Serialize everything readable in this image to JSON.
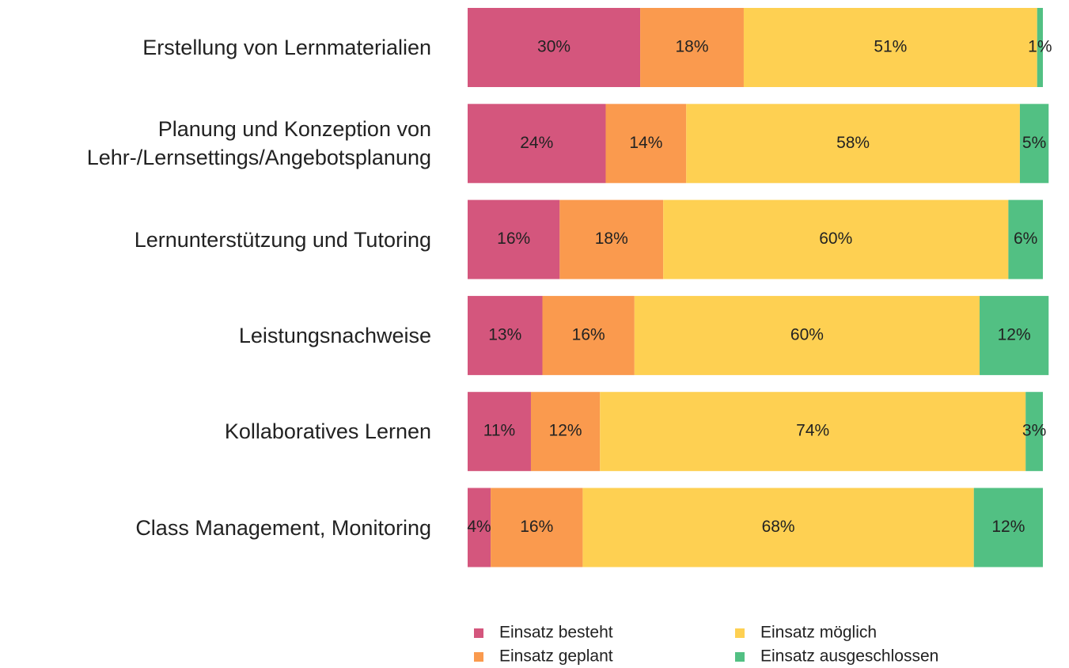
{
  "chart_data": {
    "type": "stacked_barh",
    "categories": [
      "Erstellung von Lernmaterialien",
      "Planung und Konzeption von\nLehr-/Lernsettings/Angebotsplanung",
      "Lernunterstützung und Tutoring",
      "Leistungsnachweise",
      "Kollaboratives Lernen",
      "Class Management, Monitoring"
    ],
    "series": [
      {
        "name": "Einsatz besteht",
        "color": "#d4567d",
        "values": [
          30,
          24,
          16,
          13,
          11,
          4
        ],
        "value_labels": [
          "30%",
          "24%",
          "16%",
          "13%",
          "11%",
          "4%"
        ]
      },
      {
        "name": "Einsatz geplant",
        "color": "#fa9a4e",
        "values": [
          18,
          14,
          18,
          16,
          12,
          16
        ],
        "value_labels": [
          "18%",
          "14%",
          "18%",
          "16%",
          "12%",
          "16%"
        ]
      },
      {
        "name": "Einsatz möglich",
        "color": "#fed052",
        "values": [
          51,
          58,
          60,
          60,
          74,
          68
        ],
        "value_labels": [
          "51%",
          "58%",
          "60%",
          "60%",
          "74%",
          "68%"
        ]
      },
      {
        "name": "Einsatz ausgeschlossen",
        "color": "#52c083",
        "values": [
          1,
          5,
          6,
          12,
          3,
          12
        ],
        "value_labels": [
          "1%",
          "5%",
          "6%",
          "12%",
          "3%",
          "12%"
        ]
      }
    ],
    "xlim": [
      0,
      100
    ]
  }
}
